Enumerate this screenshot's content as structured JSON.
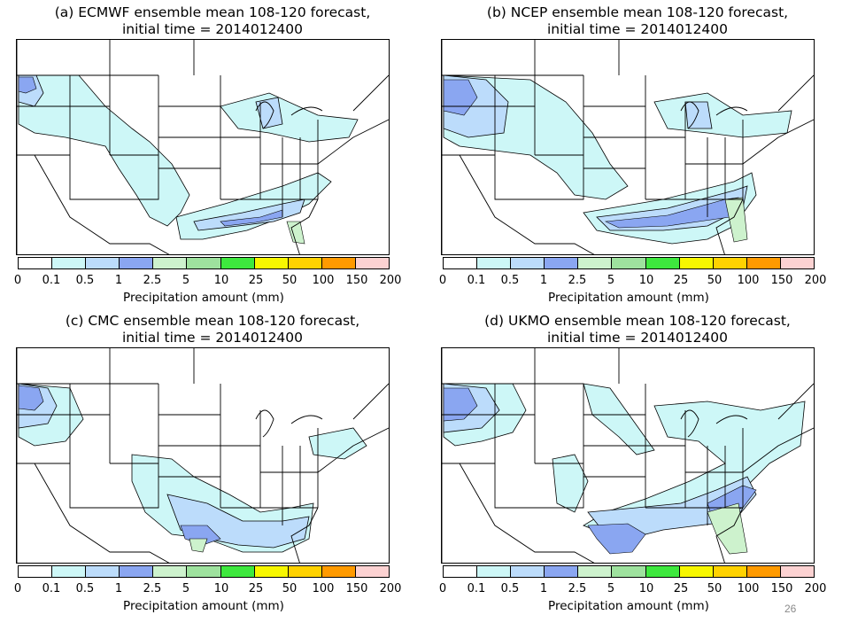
{
  "panels": [
    {
      "id": "a",
      "title_line1": "(a) ECMWF ensemble mean 108-120 forecast,",
      "title_line2": "initial time = 2014012400"
    },
    {
      "id": "b",
      "title_line1": "(b) NCEP ensemble mean 108-120 forecast,",
      "title_line2": "initial time = 2014012400"
    },
    {
      "id": "c",
      "title_line1": "(c) CMC ensemble mean 108-120 forecast,",
      "title_line2": "initial time = 2014012400"
    },
    {
      "id": "d",
      "title_line1": "(d) UKMO ensemble mean 108-120 forecast,",
      "title_line2": "initial time = 2014012400"
    }
  ],
  "legend": {
    "label": "Precipitation amount (mm)",
    "ticks": [
      "0",
      "0.1",
      "0.5",
      "1",
      "2.5",
      "5",
      "10",
      "25",
      "50",
      "100",
      "150",
      "200"
    ],
    "colors": [
      "#ffffff",
      "#cdf7f7",
      "#bcdcfb",
      "#8aa6f1",
      "#cdf2cd",
      "#9ee29e",
      "#3ee83e",
      "#f7f700",
      "#ffd200",
      "#ff9a00",
      "#fcd2d2"
    ]
  },
  "page_number": "26"
}
